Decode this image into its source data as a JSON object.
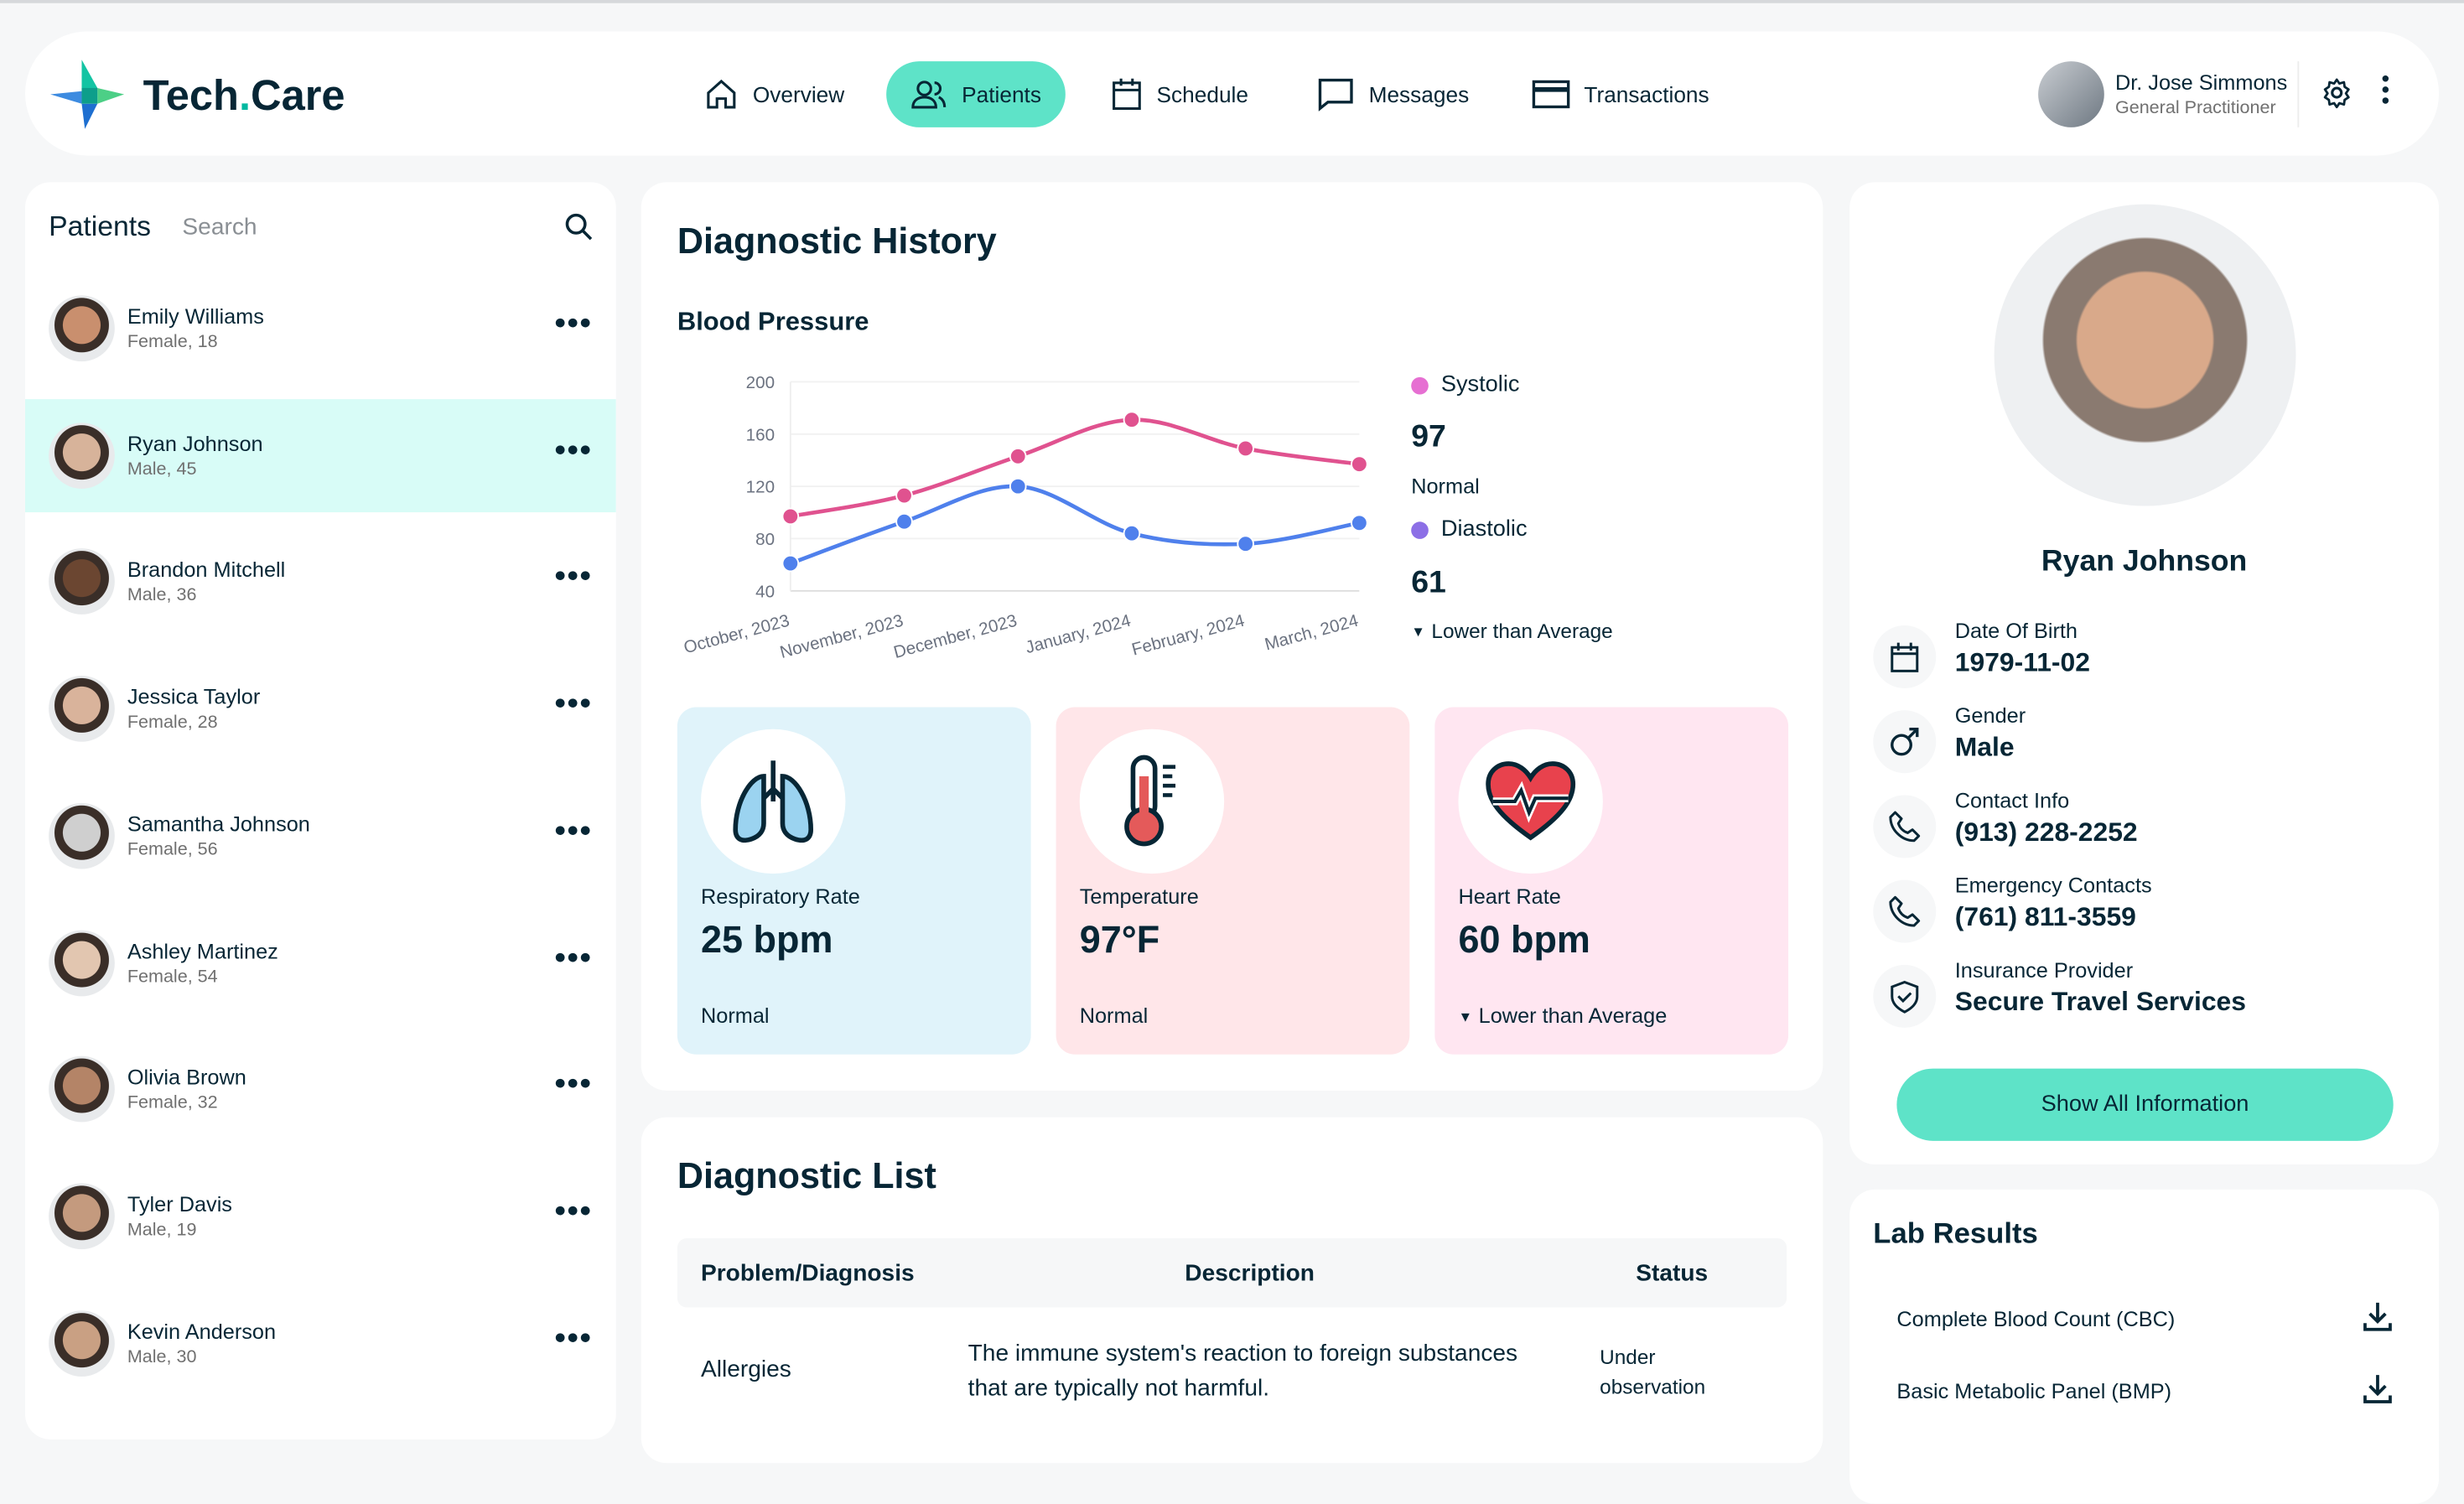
{
  "brand": {
    "name_part1": "Tech",
    "dot": ".",
    "name_part2": "Care"
  },
  "nav": [
    {
      "label": "Overview",
      "icon": "home-icon"
    },
    {
      "label": "Patients",
      "icon": "users-icon",
      "active": true
    },
    {
      "label": "Schedule",
      "icon": "calendar-icon"
    },
    {
      "label": "Messages",
      "icon": "chat-icon"
    },
    {
      "label": "Transactions",
      "icon": "credit-card-icon"
    }
  ],
  "doctor": {
    "name": "Dr. Jose Simmons",
    "role": "General Practitioner"
  },
  "patients_panel": {
    "title": "Patients",
    "search_placeholder": "Search",
    "items": [
      {
        "name": "Emily Williams",
        "info": "Female, 18"
      },
      {
        "name": "Ryan Johnson",
        "info": "Male, 45",
        "active": true
      },
      {
        "name": "Brandon Mitchell",
        "info": "Male, 36"
      },
      {
        "name": "Jessica Taylor",
        "info": "Female, 28"
      },
      {
        "name": "Samantha Johnson",
        "info": "Female, 56"
      },
      {
        "name": "Ashley Martinez",
        "info": "Female, 54"
      },
      {
        "name": "Olivia Brown",
        "info": "Female, 32"
      },
      {
        "name": "Tyler Davis",
        "info": "Male, 19"
      },
      {
        "name": "Kevin Anderson",
        "info": "Male, 30"
      }
    ]
  },
  "diagnostic_history": {
    "title": "Diagnostic History",
    "chart_title": "Blood Pressure",
    "systolic": {
      "label": "Systolic",
      "value": "97",
      "status": "Normal",
      "color": "#E66FD2"
    },
    "diastolic": {
      "label": "Diastolic",
      "value": "61",
      "status": "Lower than Average",
      "color": "#8C6FE6"
    },
    "vitals": [
      {
        "label": "Respiratory Rate",
        "value": "25 bpm",
        "status": "Normal",
        "color": "#E0F3FA",
        "icon": "lungs-icon"
      },
      {
        "label": "Temperature",
        "value": "97°F",
        "status": "Normal",
        "color": "#FFE6E9",
        "icon": "thermometer-icon"
      },
      {
        "label": "Heart Rate",
        "value": "60 bpm",
        "status": "Lower than Average",
        "arrow": true,
        "color": "#FFE6F1",
        "icon": "heart-icon"
      }
    ]
  },
  "chart_data": {
    "type": "line",
    "categories": [
      "October, 2023",
      "November, 2023",
      "December, 2023",
      "January, 2024",
      "February, 2024",
      "March, 2024"
    ],
    "series": [
      {
        "name": "Systolic",
        "color": "#E0528F",
        "values": [
          97,
          113,
          143,
          171,
          149,
          137
        ]
      },
      {
        "name": "Diastolic",
        "color": "#4F80EC",
        "values": [
          61,
          93,
          120,
          84,
          76,
          92
        ]
      }
    ],
    "yticks": [
      200,
      160,
      120,
      80,
      40
    ],
    "ylim": [
      40,
      200
    ],
    "grid": true
  },
  "diagnostic_list": {
    "title": "Diagnostic List",
    "headers": [
      "Problem/Diagnosis",
      "Description",
      "Status"
    ],
    "rows": [
      {
        "problem": "Allergies",
        "description": "The immune system's reaction to foreign substances that are typically not harmful.",
        "status": "Under observation"
      }
    ]
  },
  "profile": {
    "name": "Ryan Johnson",
    "fields": [
      {
        "label": "Date Of Birth",
        "value": "1979-11-02",
        "icon": "calendar-icon"
      },
      {
        "label": "Gender",
        "value": "Male",
        "icon": "male-icon"
      },
      {
        "label": "Contact Info",
        "value": "(913) 228-2252",
        "icon": "phone-icon"
      },
      {
        "label": "Emergency Contacts",
        "value": "(761) 811-3559",
        "icon": "phone-icon"
      },
      {
        "label": "Insurance Provider",
        "value": "Secure Travel Services",
        "icon": "shield-icon"
      }
    ],
    "button": "Show All Information"
  },
  "lab_results": {
    "title": "Lab Results",
    "items": [
      "Complete Blood Count (CBC)",
      "Basic Metabolic Panel (BMP)"
    ]
  }
}
